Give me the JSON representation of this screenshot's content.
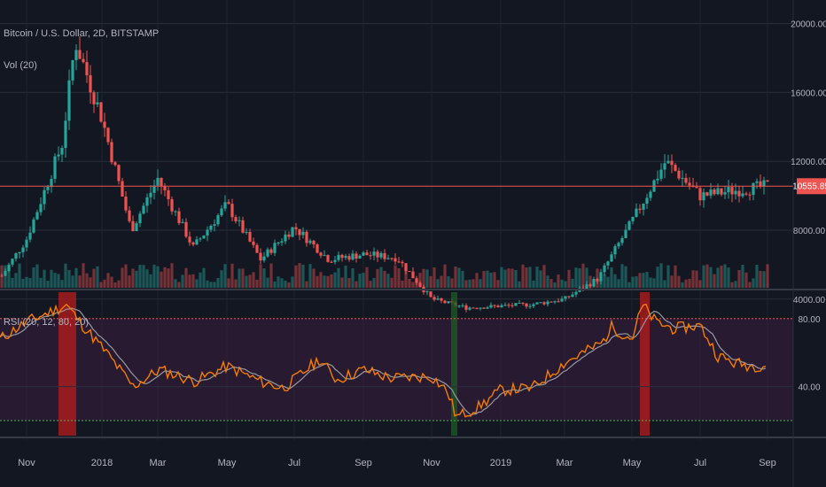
{
  "chart_data": [
    {
      "type": "candlestick",
      "title": "Bitcoin / U.S. Dollar, 2D, BITSTAMP",
      "volume_label": "Vol (20)",
      "y_ticks": [
        "20000.00",
        "16000.00",
        "12000.00",
        "8000.00",
        "4000.00"
      ],
      "y_tick_values": [
        20000,
        16000,
        12000,
        8000,
        4000
      ],
      "ylim": [
        1500,
        21000
      ],
      "last_price": 10555.85,
      "last_price_label": "10555.85",
      "price_path_approx": [
        [
          "Oct 2017",
          5200
        ],
        [
          "Nov 2017",
          7500
        ],
        [
          "Dec 2017",
          13000
        ],
        [
          "mid Dec 2017",
          19000
        ],
        [
          "Jan 2018",
          14500
        ],
        [
          "Feb 2018",
          8000
        ],
        [
          "Mar 2018",
          11000
        ],
        [
          "Apr 2018",
          7000
        ],
        [
          "May 2018",
          9500
        ],
        [
          "Jun 2018",
          6300
        ],
        [
          "Jul 2018",
          8200
        ],
        [
          "Aug 2018",
          6300
        ],
        [
          "Sep 2018",
          6600
        ],
        [
          "Oct 2018",
          6400
        ],
        [
          "Nov 2018",
          4000
        ],
        [
          "Dec 2018",
          3500
        ],
        [
          "Jan 2019",
          3600
        ],
        [
          "Feb 2019",
          3700
        ],
        [
          "Mar 2019",
          4000
        ],
        [
          "Apr 2019",
          5200
        ],
        [
          "May 2019",
          8500
        ],
        [
          "Jun 2019",
          12000
        ],
        [
          "Jul 2019",
          10000
        ],
        [
          "Aug 2019",
          10300
        ],
        [
          "Sep 2019",
          10556
        ]
      ],
      "colors": {
        "up": "#26a69a",
        "down": "#ef5350",
        "last_price_line": "#ef5350"
      }
    },
    {
      "type": "line",
      "title": "RSI (20, 12, 80, 20)",
      "y_ticks": [
        "80.00",
        "40.00"
      ],
      "y_tick_values": [
        80,
        40
      ],
      "ylim": [
        15,
        95
      ],
      "overbought": 80,
      "oversold": 20,
      "series": [
        {
          "name": "RSI",
          "color": "#f57c00"
        },
        {
          "name": "Signal",
          "color": "#9598a1"
        }
      ],
      "highlight_regions": [
        "Dec 2017 (overbought)",
        "Dec 2018 (oversold)",
        "May 2019 (overbought)"
      ]
    }
  ],
  "x_axis_labels": [
    "Nov",
    "2018",
    "Mar",
    "May",
    "Jul",
    "Sep",
    "Nov",
    "2019",
    "Mar",
    "May",
    "Jul",
    "Sep"
  ]
}
